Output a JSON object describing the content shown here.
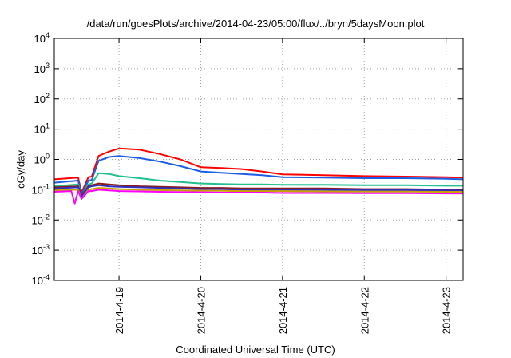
{
  "chart_data": {
    "type": "line",
    "title": "/data/run/goesPlots/archive/2014-04-23/05:00/flux/../bryn/5daysMoon.plot",
    "xlabel": "Coordinated Universal Time (UTC)",
    "ylabel": "cGy/day",
    "y_scale": "log",
    "ylim": [
      0.0001,
      10000
    ],
    "xlim": [
      2014.0418,
      2014.0423
    ],
    "x_start": "2014-04-18 05:00",
    "x_end": "2014-04-23 05:00",
    "x_ticks": [
      "2014-4-19",
      "2014-4-20",
      "2014-4-21",
      "2014-4-22",
      "2014-4-23"
    ],
    "y_ticks": [
      {
        "base": "10",
        "exp": "-4"
      },
      {
        "base": "10",
        "exp": "-3"
      },
      {
        "base": "10",
        "exp": "-2"
      },
      {
        "base": "10",
        "exp": "-1"
      },
      {
        "base": "10",
        "exp": "0"
      },
      {
        "base": "10",
        "exp": "1"
      },
      {
        "base": "10",
        "exp": "2"
      },
      {
        "base": "10",
        "exp": "3"
      },
      {
        "base": "10",
        "exp": "4"
      }
    ],
    "grid": true,
    "series": [
      {
        "color": "#ff0000",
        "x": [
          "2014-04-18 05:00",
          "2014-04-18 12:00",
          "2014-04-18 13:00",
          "2014-04-18 15:00",
          "2014-04-18 16:00",
          "2014-04-18 18:00",
          "2014-04-18 21:00",
          "2014-04-19 00:00",
          "2014-04-19 06:00",
          "2014-04-19 12:00",
          "2014-04-19 18:00",
          "2014-04-20 00:00",
          "2014-04-20 06:00",
          "2014-04-20 12:00",
          "2014-04-20 18:00",
          "2014-04-21 00:00",
          "2014-04-21 12:00",
          "2014-04-22 00:00",
          "2014-04-22 12:00",
          "2014-04-23 00:00",
          "2014-04-23 05:00"
        ],
        "values": [
          0.22,
          0.25,
          0.08,
          0.26,
          0.27,
          1.3,
          1.8,
          2.3,
          2.1,
          1.5,
          1.0,
          0.55,
          0.52,
          0.48,
          0.4,
          0.32,
          0.3,
          0.28,
          0.27,
          0.26,
          0.25
        ]
      },
      {
        "color": "#1a5fe6",
        "x": [
          "2014-04-18 05:00",
          "2014-04-18 12:00",
          "2014-04-18 13:00",
          "2014-04-18 15:00",
          "2014-04-18 16:00",
          "2014-04-18 18:00",
          "2014-04-18 21:00",
          "2014-04-19 00:00",
          "2014-04-19 06:00",
          "2014-04-19 12:00",
          "2014-04-19 18:00",
          "2014-04-20 00:00",
          "2014-04-20 06:00",
          "2014-04-20 12:00",
          "2014-04-20 18:00",
          "2014-04-21 00:00",
          "2014-04-21 12:00",
          "2014-04-22 00:00",
          "2014-04-22 12:00",
          "2014-04-23 00:00",
          "2014-04-23 05:00"
        ],
        "values": [
          0.17,
          0.2,
          0.07,
          0.2,
          0.21,
          0.9,
          1.2,
          1.3,
          1.1,
          0.85,
          0.6,
          0.4,
          0.36,
          0.33,
          0.3,
          0.26,
          0.25,
          0.24,
          0.24,
          0.23,
          0.22
        ]
      },
      {
        "color": "#20c090",
        "x": [
          "2014-04-18 05:00",
          "2014-04-18 12:00",
          "2014-04-18 13:00",
          "2014-04-18 15:00",
          "2014-04-18 16:00",
          "2014-04-18 18:00",
          "2014-04-18 21:00",
          "2014-04-19 00:00",
          "2014-04-19 06:00",
          "2014-04-19 12:00",
          "2014-04-19 18:00",
          "2014-04-20 00:00",
          "2014-04-20 06:00",
          "2014-04-20 12:00",
          "2014-04-20 18:00",
          "2014-04-21 00:00",
          "2014-04-21 12:00",
          "2014-04-22 00:00",
          "2014-04-22 12:00",
          "2014-04-23 00:00",
          "2014-04-23 05:00"
        ],
        "values": [
          0.13,
          0.15,
          0.06,
          0.15,
          0.16,
          0.35,
          0.33,
          0.28,
          0.24,
          0.2,
          0.18,
          0.16,
          0.155,
          0.15,
          0.15,
          0.145,
          0.145,
          0.14,
          0.14,
          0.135,
          0.135
        ]
      },
      {
        "color": "#8b1a1a",
        "x": [
          "2014-04-18 05:00",
          "2014-04-18 12:00",
          "2014-04-18 13:00",
          "2014-04-18 15:00",
          "2014-04-18 16:00",
          "2014-04-18 18:00",
          "2014-04-18 21:00",
          "2014-04-19 00:00",
          "2014-04-19 06:00",
          "2014-04-19 12:00",
          "2014-04-19 18:00",
          "2014-04-20 00:00",
          "2014-04-20 06:00",
          "2014-04-20 12:00",
          "2014-04-20 18:00",
          "2014-04-21 00:00",
          "2014-04-21 12:00",
          "2014-04-22 00:00",
          "2014-04-22 12:00",
          "2014-04-23 00:00",
          "2014-04-23 05:00"
        ],
        "values": [
          0.12,
          0.13,
          0.065,
          0.13,
          0.14,
          0.16,
          0.15,
          0.14,
          0.13,
          0.125,
          0.12,
          0.115,
          0.115,
          0.11,
          0.11,
          0.11,
          0.11,
          0.105,
          0.105,
          0.1,
          0.1
        ]
      },
      {
        "color": "#3030c0",
        "x": [
          "2014-04-18 05:00",
          "2014-04-18 12:00",
          "2014-04-18 13:00",
          "2014-04-18 15:00",
          "2014-04-18 16:00",
          "2014-04-18 18:00",
          "2014-04-18 21:00",
          "2014-04-19 00:00",
          "2014-04-19 06:00",
          "2014-04-19 12:00",
          "2014-04-19 18:00",
          "2014-04-20 00:00",
          "2014-04-20 06:00",
          "2014-04-20 12:00",
          "2014-04-20 18:00",
          "2014-04-21 00:00",
          "2014-04-21 12:00",
          "2014-04-22 00:00",
          "2014-04-22 12:00",
          "2014-04-23 00:00",
          "2014-04-23 05:00"
        ],
        "values": [
          0.11,
          0.12,
          0.06,
          0.12,
          0.13,
          0.14,
          0.13,
          0.125,
          0.12,
          0.115,
          0.11,
          0.105,
          0.105,
          0.1,
          0.1,
          0.1,
          0.1,
          0.097,
          0.097,
          0.095,
          0.095
        ]
      },
      {
        "color": "#c8a000",
        "x": [
          "2014-04-18 05:00",
          "2014-04-18 12:00",
          "2014-04-18 13:00",
          "2014-04-18 15:00",
          "2014-04-18 16:00",
          "2014-04-18 18:00",
          "2014-04-18 21:00",
          "2014-04-19 00:00",
          "2014-04-19 06:00",
          "2014-04-19 12:00",
          "2014-04-19 18:00",
          "2014-04-20 00:00",
          "2014-04-20 06:00",
          "2014-04-20 12:00",
          "2014-04-20 18:00",
          "2014-04-21 00:00",
          "2014-04-21 12:00",
          "2014-04-22 00:00",
          "2014-04-22 12:00",
          "2014-04-23 00:00",
          "2014-04-23 05:00"
        ],
        "values": [
          0.095,
          0.1,
          0.05,
          0.1,
          0.105,
          0.115,
          0.11,
          0.105,
          0.1,
          0.097,
          0.095,
          0.093,
          0.092,
          0.09,
          0.09,
          0.09,
          0.088,
          0.087,
          0.087,
          0.085,
          0.085
        ]
      },
      {
        "color": "#ff00ff",
        "x": [
          "2014-04-18 05:00",
          "2014-04-18 10:00",
          "2014-04-18 11:00",
          "2014-04-18 12:00",
          "2014-04-18 13:00",
          "2014-04-18 15:00",
          "2014-04-18 16:00",
          "2014-04-18 18:00",
          "2014-04-18 21:00",
          "2014-04-19 00:00",
          "2014-04-19 06:00",
          "2014-04-19 12:00",
          "2014-04-19 18:00",
          "2014-04-20 00:00",
          "2014-04-20 06:00",
          "2014-04-20 12:00",
          "2014-04-20 18:00",
          "2014-04-21 00:00",
          "2014-04-21 12:00",
          "2014-04-22 00:00",
          "2014-04-22 12:00",
          "2014-04-23 00:00",
          "2014-04-23 05:00"
        ],
        "values": [
          0.085,
          0.09,
          0.035,
          0.09,
          0.05,
          0.09,
          0.09,
          0.1,
          0.095,
          0.09,
          0.088,
          0.085,
          0.083,
          0.082,
          0.08,
          0.08,
          0.08,
          0.078,
          0.078,
          0.077,
          0.077,
          0.075,
          0.075
        ]
      }
    ]
  }
}
